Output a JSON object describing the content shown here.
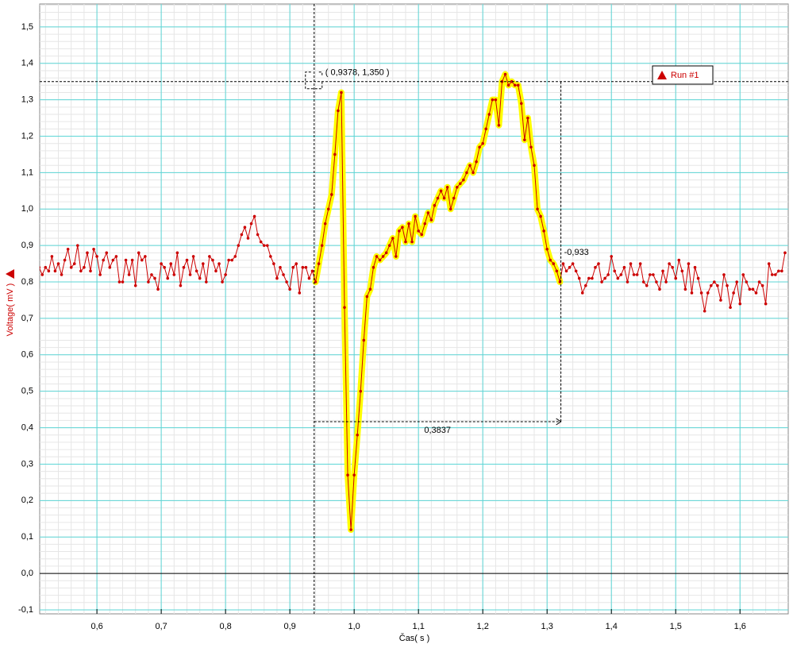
{
  "chart_data": {
    "type": "line",
    "x_label": "Čas( s )",
    "y_label": "Voltage( mV )",
    "xlim": [
      0.511,
      1.675
    ],
    "ylim": [
      -0.111,
      1.563
    ],
    "xticks": [
      {
        "value": 0.6,
        "label": "0,6"
      },
      {
        "value": 0.7,
        "label": "0,7"
      },
      {
        "value": 0.8,
        "label": "0,8"
      },
      {
        "value": 0.9,
        "label": "0,9"
      },
      {
        "value": 1.0,
        "label": "1,0"
      },
      {
        "value": 1.1,
        "label": "1,1"
      },
      {
        "value": 1.2,
        "label": "1,2"
      },
      {
        "value": 1.3,
        "label": "1,3"
      },
      {
        "value": 1.4,
        "label": "1,4"
      },
      {
        "value": 1.5,
        "label": "1,5"
      },
      {
        "value": 1.6,
        "label": "1,6"
      }
    ],
    "yticks": [
      {
        "value": -0.1,
        "label": "-0,1"
      },
      {
        "value": 0.0,
        "label": "0,0"
      },
      {
        "value": 0.1,
        "label": "0,1"
      },
      {
        "value": 0.2,
        "label": "0,2"
      },
      {
        "value": 0.3,
        "label": "0,3"
      },
      {
        "value": 0.4,
        "label": "0,4"
      },
      {
        "value": 0.5,
        "label": "0,5"
      },
      {
        "value": 0.6,
        "label": "0,6"
      },
      {
        "value": 0.7,
        "label": "0,7"
      },
      {
        "value": 0.8,
        "label": "0,8"
      },
      {
        "value": 0.9,
        "label": "0,9"
      },
      {
        "value": 1.0,
        "label": "1,0"
      },
      {
        "value": 1.1,
        "label": "1,1"
      },
      {
        "value": 1.2,
        "label": "1,2"
      },
      {
        "value": 1.3,
        "label": "1,3"
      },
      {
        "value": 1.4,
        "label": "1,4"
      },
      {
        "value": 1.5,
        "label": "1,5"
      }
    ],
    "grid": true,
    "minor_grid": true,
    "legend": "top-right",
    "highlight_color": "#ffff00",
    "x": [
      0.51,
      0.515,
      0.52,
      0.525,
      0.53,
      0.535,
      0.54,
      0.545,
      0.55,
      0.555,
      0.56,
      0.565,
      0.57,
      0.575,
      0.58,
      0.585,
      0.59,
      0.595,
      0.6,
      0.605,
      0.61,
      0.615,
      0.62,
      0.625,
      0.63,
      0.635,
      0.64,
      0.645,
      0.65,
      0.655,
      0.66,
      0.665,
      0.67,
      0.675,
      0.68,
      0.685,
      0.69,
      0.695,
      0.7,
      0.705,
      0.71,
      0.715,
      0.72,
      0.725,
      0.73,
      0.735,
      0.74,
      0.745,
      0.75,
      0.755,
      0.76,
      0.765,
      0.77,
      0.775,
      0.78,
      0.785,
      0.79,
      0.795,
      0.8,
      0.805,
      0.81,
      0.815,
      0.82,
      0.825,
      0.83,
      0.835,
      0.84,
      0.845,
      0.85,
      0.855,
      0.86,
      0.865,
      0.87,
      0.875,
      0.88,
      0.885,
      0.89,
      0.895,
      0.9,
      0.905,
      0.91,
      0.915,
      0.92,
      0.925,
      0.93,
      0.935,
      0.94,
      0.945,
      0.95,
      0.955,
      0.96,
      0.965,
      0.97,
      0.975,
      0.98,
      0.985,
      0.99,
      0.995,
      1.0,
      1.005,
      1.01,
      1.015,
      1.02,
      1.025,
      1.03,
      1.035,
      1.04,
      1.045,
      1.05,
      1.055,
      1.06,
      1.065,
      1.07,
      1.075,
      1.08,
      1.085,
      1.09,
      1.095,
      1.1,
      1.105,
      1.11,
      1.115,
      1.12,
      1.125,
      1.13,
      1.135,
      1.14,
      1.145,
      1.15,
      1.155,
      1.16,
      1.165,
      1.17,
      1.175,
      1.18,
      1.185,
      1.19,
      1.195,
      1.2,
      1.205,
      1.21,
      1.215,
      1.22,
      1.225,
      1.23,
      1.235,
      1.24,
      1.245,
      1.25,
      1.255,
      1.26,
      1.265,
      1.27,
      1.275,
      1.28,
      1.285,
      1.29,
      1.295,
      1.3,
      1.305,
      1.31,
      1.315,
      1.32,
      1.325,
      1.33,
      1.335,
      1.34,
      1.345,
      1.35,
      1.355,
      1.36,
      1.365,
      1.37,
      1.375,
      1.38,
      1.385,
      1.39,
      1.395,
      1.4,
      1.405,
      1.41,
      1.415,
      1.42,
      1.425,
      1.43,
      1.435,
      1.44,
      1.445,
      1.45,
      1.455,
      1.46,
      1.465,
      1.47,
      1.475,
      1.48,
      1.485,
      1.49,
      1.495,
      1.5,
      1.505,
      1.51,
      1.515,
      1.52,
      1.525,
      1.53,
      1.535,
      1.54,
      1.545,
      1.55,
      1.555,
      1.56,
      1.565,
      1.57,
      1.575,
      1.58,
      1.585,
      1.59,
      1.595,
      1.6,
      1.605,
      1.61,
      1.615,
      1.62,
      1.625,
      1.63,
      1.635,
      1.64,
      1.645,
      1.65,
      1.655,
      1.66,
      1.665,
      1.67
    ],
    "series": [
      {
        "name": "Run #1",
        "color": "#cc0000",
        "values": [
          0.84,
          0.82,
          0.84,
          0.83,
          0.87,
          0.83,
          0.85,
          0.82,
          0.86,
          0.89,
          0.84,
          0.85,
          0.9,
          0.83,
          0.84,
          0.88,
          0.83,
          0.89,
          0.87,
          0.82,
          0.86,
          0.88,
          0.84,
          0.86,
          0.87,
          0.8,
          0.8,
          0.86,
          0.82,
          0.86,
          0.79,
          0.88,
          0.86,
          0.87,
          0.8,
          0.82,
          0.81,
          0.78,
          0.85,
          0.84,
          0.81,
          0.85,
          0.82,
          0.88,
          0.79,
          0.84,
          0.86,
          0.82,
          0.87,
          0.83,
          0.81,
          0.85,
          0.8,
          0.87,
          0.86,
          0.83,
          0.85,
          0.8,
          0.82,
          0.86,
          0.86,
          0.87,
          0.9,
          0.93,
          0.95,
          0.92,
          0.96,
          0.98,
          0.93,
          0.91,
          0.9,
          0.9,
          0.87,
          0.85,
          0.81,
          0.84,
          0.82,
          0.8,
          0.78,
          0.84,
          0.85,
          0.77,
          0.84,
          0.84,
          0.81,
          0.83,
          0.8,
          0.85,
          0.9,
          0.96,
          1.0,
          1.04,
          1.15,
          1.27,
          1.32,
          0.73,
          0.27,
          0.12,
          0.27,
          0.38,
          0.5,
          0.64,
          0.76,
          0.78,
          0.84,
          0.87,
          0.86,
          0.87,
          0.88,
          0.9,
          0.92,
          0.87,
          0.94,
          0.95,
          0.91,
          0.96,
          0.91,
          0.98,
          0.94,
          0.93,
          0.96,
          0.99,
          0.97,
          1.01,
          1.03,
          1.05,
          1.03,
          1.06,
          1.0,
          1.03,
          1.06,
          1.07,
          1.08,
          1.1,
          1.12,
          1.1,
          1.13,
          1.17,
          1.18,
          1.22,
          1.26,
          1.3,
          1.3,
          1.23,
          1.35,
          1.37,
          1.34,
          1.35,
          1.34,
          1.34,
          1.29,
          1.19,
          1.25,
          1.17,
          1.12,
          1.0,
          0.98,
          0.94,
          0.89,
          0.86,
          0.85,
          0.83,
          0.8,
          0.85,
          0.83,
          0.84,
          0.85,
          0.83,
          0.81,
          0.77,
          0.79,
          0.81,
          0.81,
          0.84,
          0.85,
          0.8,
          0.81,
          0.82,
          0.87,
          0.83,
          0.81,
          0.82,
          0.84,
          0.8,
          0.85,
          0.82,
          0.82,
          0.85,
          0.8,
          0.79,
          0.82,
          0.82,
          0.8,
          0.78,
          0.83,
          0.8,
          0.85,
          0.84,
          0.81,
          0.86,
          0.83,
          0.78,
          0.85,
          0.77,
          0.84,
          0.81,
          0.77,
          0.72,
          0.77,
          0.79,
          0.8,
          0.79,
          0.75,
          0.82,
          0.79,
          0.73,
          0.77,
          0.8,
          0.74,
          0.82,
          0.8,
          0.78,
          0.78,
          0.77,
          0.8,
          0.79,
          0.74,
          0.85,
          0.82,
          0.82,
          0.83,
          0.83,
          0.88
        ]
      }
    ],
    "annotations": {
      "cursor": {
        "x": 0.9378,
        "y": 1.35,
        "label": "( 0,9378, 1,350 )"
      },
      "delta_x": {
        "value": 0.3837,
        "label": "0,3837"
      },
      "delta_y": {
        "value": -0.933,
        "label": "-0,933"
      }
    }
  }
}
